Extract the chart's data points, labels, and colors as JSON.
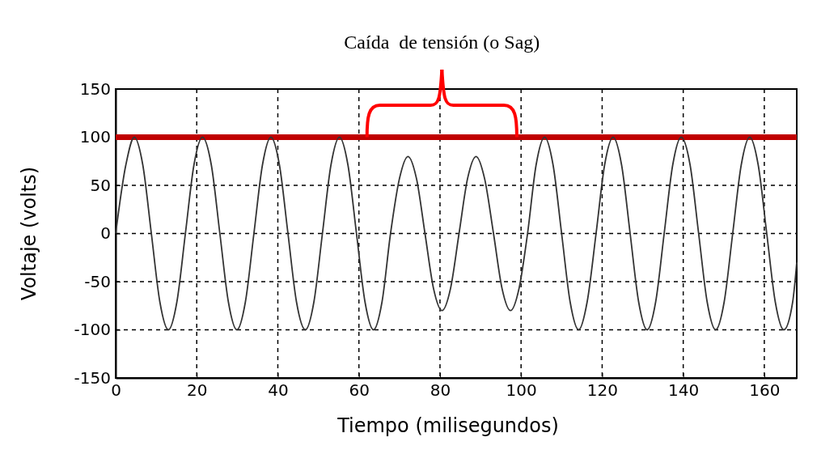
{
  "chart_data": {
    "type": "line",
    "title": "Caída  de tensión (o Sag)",
    "xlabel": "Tiempo (milisegundos)",
    "ylabel": "Voltaje (volts)",
    "xlim": [
      0,
      168
    ],
    "xticks": [
      0,
      20,
      40,
      60,
      80,
      100,
      120,
      140,
      160
    ],
    "ylim": [
      -150,
      150
    ],
    "yticks": [
      -150,
      -100,
      -50,
      0,
      50,
      100,
      150
    ],
    "grid": true,
    "marker": "none",
    "line_style": "solid",
    "ref_lines": [
      {
        "axis": "y",
        "value": 100,
        "color": "#c00000"
      }
    ],
    "series": [
      {
        "color": "#333333",
        "x": [
          0,
          2.5,
          4.6,
          6.7,
          8.8,
          10.9,
          13.0,
          15.1,
          17.2,
          19.3,
          21.4,
          23.6,
          25.7,
          27.8,
          29.9,
          32.0,
          34.1,
          36.2,
          38.3,
          40.4,
          42.5,
          44.6,
          46.8,
          48.9,
          51.0,
          53.1,
          55.2,
          57.3,
          59.4,
          61.5,
          63.6,
          65.7,
          67.8,
          70.0,
          72.1,
          74.2,
          76.3,
          78.4,
          80.5,
          82.6,
          84.7,
          86.8,
          88.9,
          91.0,
          93.2,
          95.3,
          97.4,
          99.5,
          101.6,
          103.7,
          105.8,
          107.9,
          110.0,
          112.1,
          114.2,
          116.3,
          118.5,
          120.6,
          122.7,
          124.8,
          126.9,
          129.0,
          131.1,
          133.2,
          135.3,
          137.4,
          139.5,
          141.7,
          143.8,
          145.9,
          148.0,
          150.1,
          152.2,
          154.3,
          156.4,
          158.5,
          160.6,
          162.7,
          164.8,
          167.0,
          168
        ],
        "values": [
          0,
          71,
          100,
          71,
          0,
          -71,
          -100,
          -71,
          0,
          71,
          100,
          71,
          0,
          -71,
          -100,
          -71,
          0,
          71,
          100,
          71,
          0,
          -71,
          -100,
          -71,
          0,
          71,
          100,
          71,
          0,
          -71,
          -100,
          -71,
          0,
          57,
          80,
          57,
          0,
          -57,
          -80,
          -57,
          0,
          57,
          80,
          57,
          0,
          -57,
          -80,
          -57,
          0,
          71,
          100,
          71,
          0,
          -71,
          -100,
          -71,
          0,
          71,
          100,
          71,
          0,
          -71,
          -100,
          -71,
          0,
          71,
          100,
          71,
          0,
          -71,
          -100,
          -71,
          0,
          71,
          100,
          71,
          0,
          -71,
          -100,
          -71,
          -30
        ]
      }
    ]
  }
}
